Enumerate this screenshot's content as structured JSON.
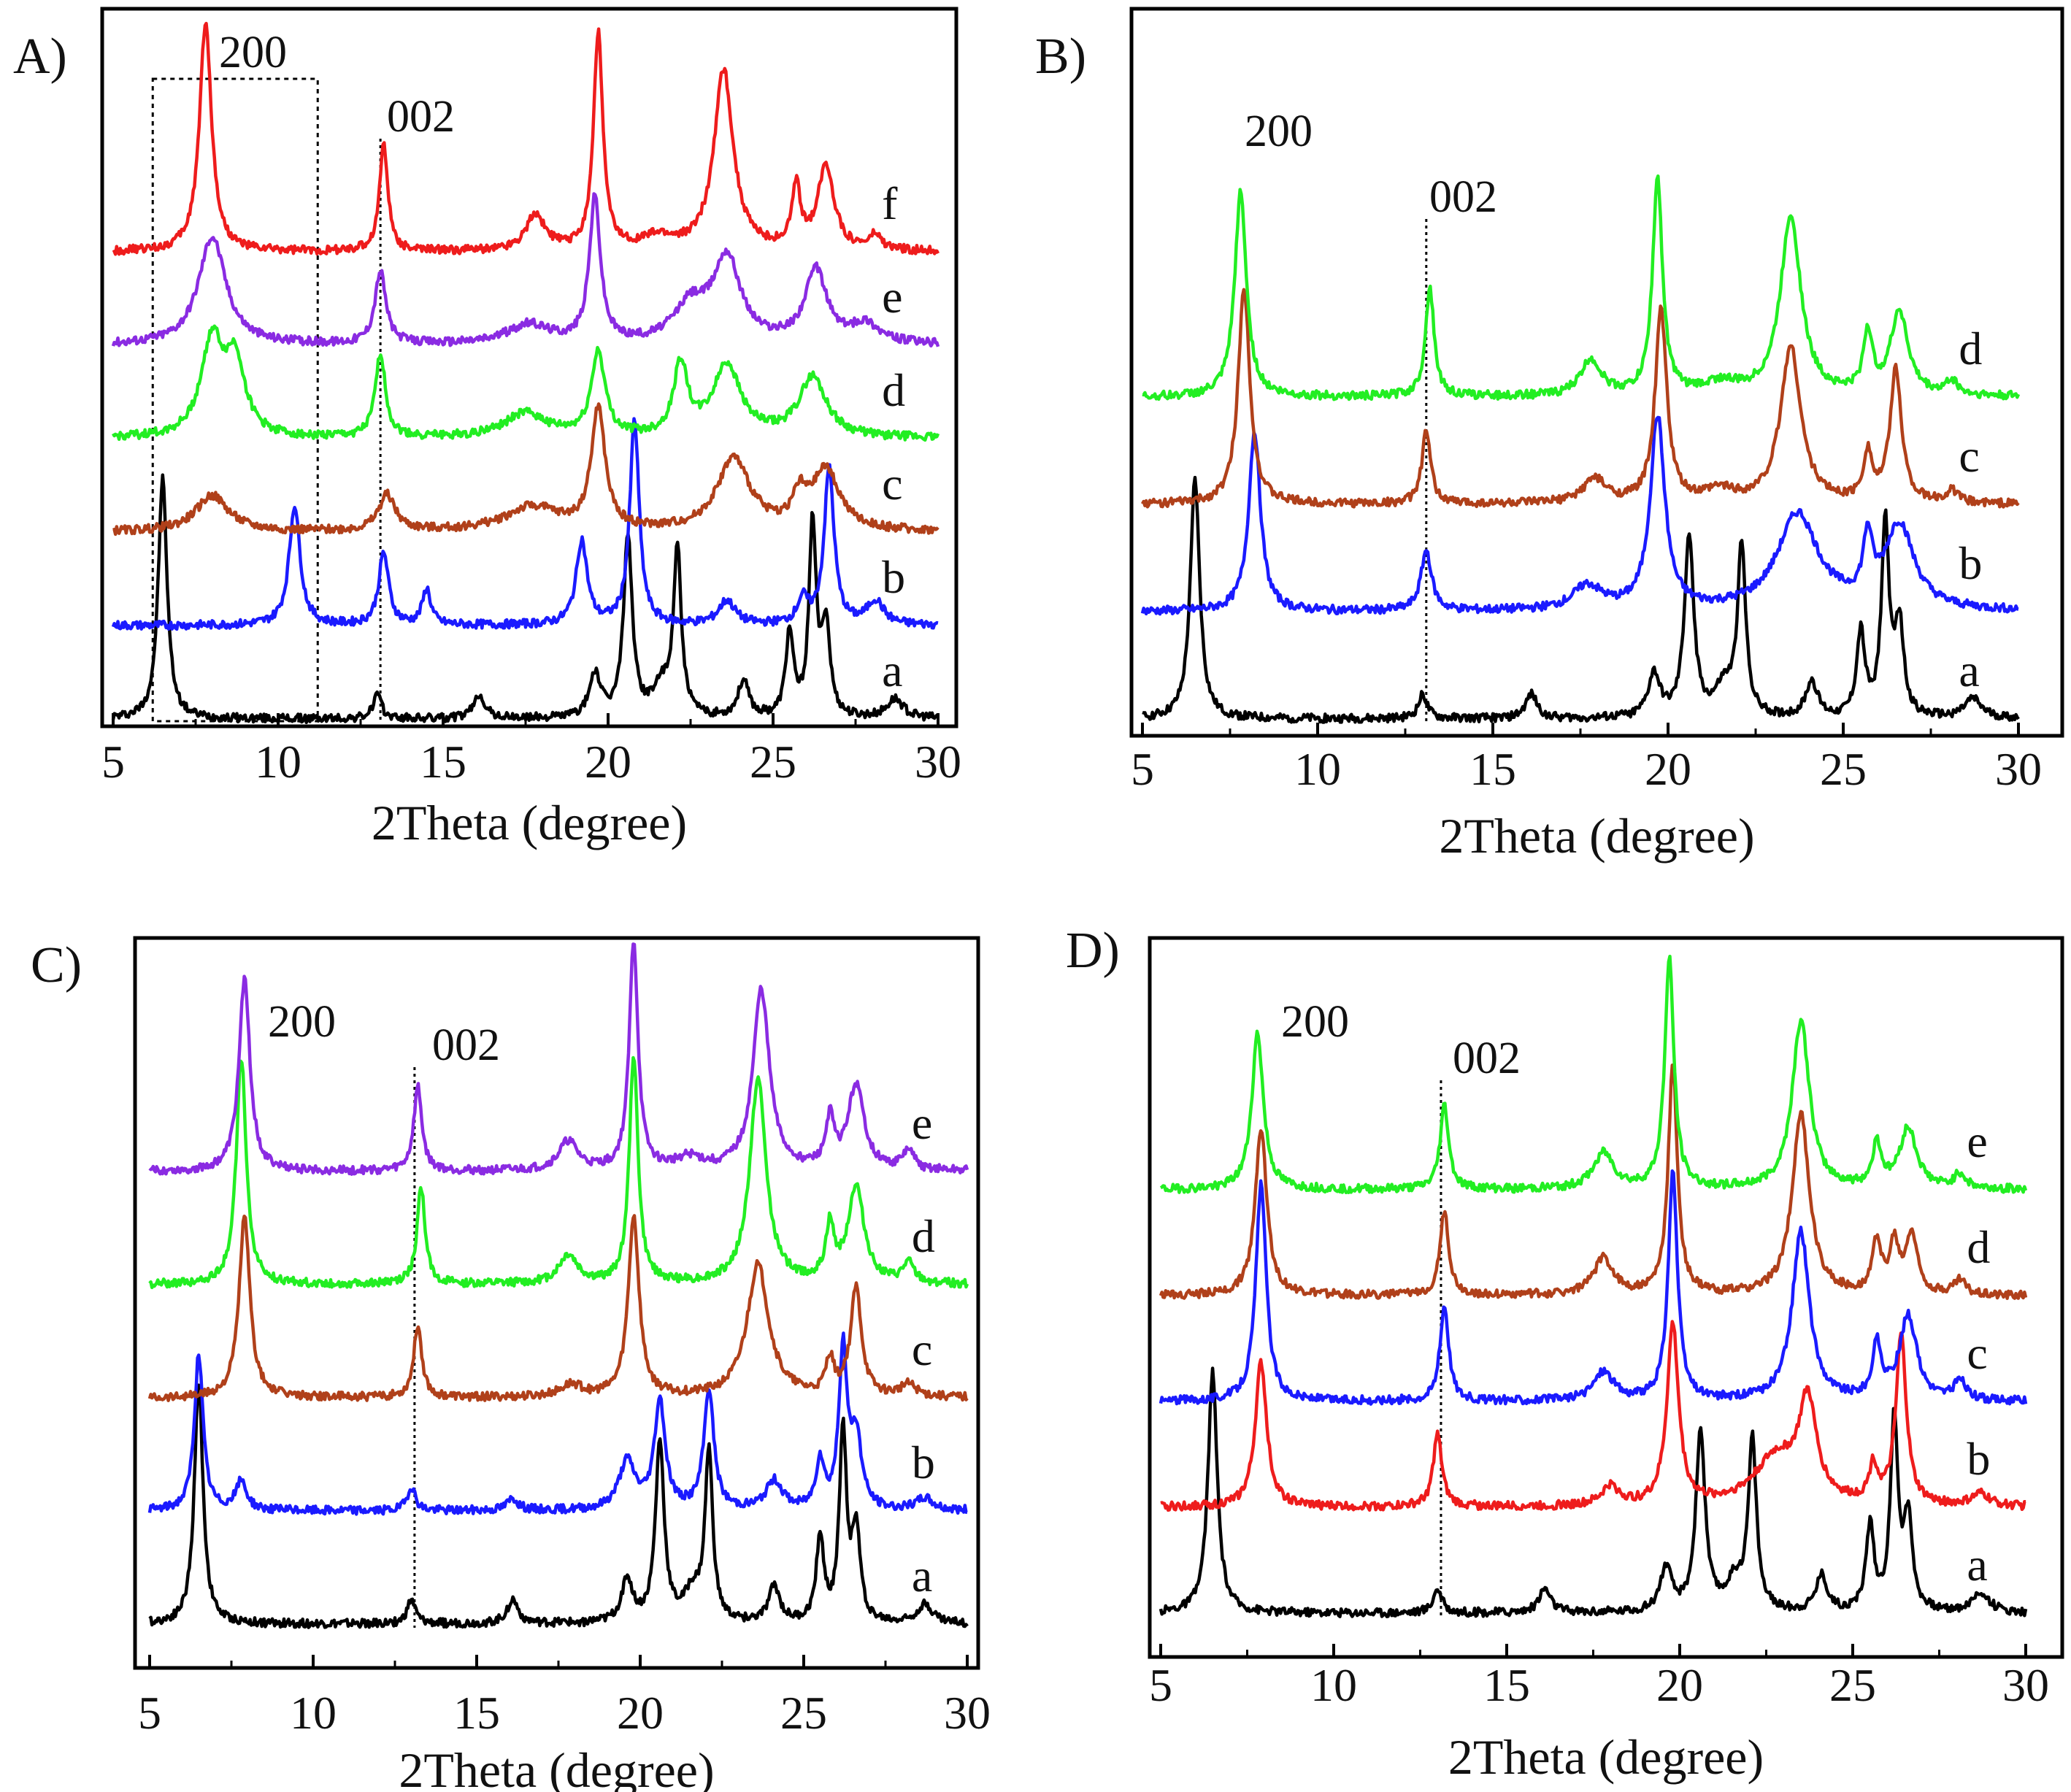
{
  "figure": {
    "x_axis_label": "2Theta (degree)",
    "x_ticks": [
      5,
      10,
      15,
      20,
      25,
      30
    ],
    "x_range": [
      5,
      30
    ]
  },
  "colors": {
    "black": "#000000",
    "blue": "#1a1aff",
    "brown": "#b0401a",
    "green": "#22ee22",
    "purple": "#8a2be2",
    "red": "#ee1c1c",
    "dotted": "#000000"
  },
  "chart_data": [
    {
      "id": "A",
      "panel_label": "A)",
      "type": "line",
      "xlabel": "2Theta (degree)",
      "xlim": [
        5,
        30
      ],
      "annotations": {
        "peak_200": "200",
        "peak_002": "002"
      },
      "has_dashed_box": true,
      "series": [
        {
          "name": "a",
          "color": "black",
          "peaks": [
            [
              6.5,
              1.0,
              0.16
            ],
            [
              13.0,
              0.1,
              0.15
            ],
            [
              16.1,
              0.1,
              0.2
            ],
            [
              19.6,
              0.18,
              0.2
            ],
            [
              20.6,
              0.75,
              0.16
            ],
            [
              22.1,
              0.7,
              0.14
            ],
            [
              21.6,
              0.12,
              0.3
            ],
            [
              24.1,
              0.15,
              0.2
            ],
            [
              25.5,
              0.35,
              0.14
            ],
            [
              26.2,
              0.8,
              0.13
            ],
            [
              26.6,
              0.38,
              0.15
            ],
            [
              28.7,
              0.08,
              0.3
            ]
          ]
        },
        {
          "name": "b",
          "color": "blue",
          "peaks": [
            [
              10.5,
              0.5,
              0.2
            ],
            [
              13.2,
              0.3,
              0.18
            ],
            [
              14.5,
              0.15,
              0.15
            ],
            [
              19.2,
              0.35,
              0.2
            ],
            [
              20.8,
              0.85,
              0.17
            ],
            [
              23.6,
              0.1,
              0.3
            ],
            [
              25.9,
              0.1,
              0.2
            ],
            [
              26.7,
              0.65,
              0.18
            ],
            [
              28.1,
              0.1,
              0.3
            ]
          ]
        },
        {
          "name": "c",
          "color": "brown",
          "peaks": [
            [
              8.0,
              0.15,
              0.6
            ],
            [
              13.3,
              0.15,
              0.3
            ],
            [
              17.7,
              0.1,
              1.0
            ],
            [
              19.7,
              0.5,
              0.25
            ],
            [
              23.8,
              0.3,
              0.6
            ],
            [
              25.8,
              0.12,
              0.25
            ],
            [
              26.6,
              0.25,
              0.5
            ]
          ]
        },
        {
          "name": "d",
          "color": "green",
          "peaks": [
            [
              8.0,
              0.4,
              0.4
            ],
            [
              8.7,
              0.3,
              0.35
            ],
            [
              13.1,
              0.35,
              0.18
            ],
            [
              17.5,
              0.1,
              0.8
            ],
            [
              19.7,
              0.35,
              0.25
            ],
            [
              22.2,
              0.3,
              0.25
            ],
            [
              23.6,
              0.3,
              0.5
            ],
            [
              26.2,
              0.25,
              0.5
            ]
          ]
        },
        {
          "name": "e",
          "color": "purple",
          "peaks": [
            [
              8.0,
              0.45,
              0.5
            ],
            [
              13.1,
              0.3,
              0.2
            ],
            [
              17.6,
              0.08,
              0.8
            ],
            [
              19.6,
              0.6,
              0.2
            ],
            [
              22.5,
              0.15,
              0.6
            ],
            [
              23.6,
              0.35,
              0.5
            ],
            [
              26.3,
              0.3,
              0.4
            ],
            [
              27.8,
              0.08,
              0.5
            ]
          ]
        },
        {
          "name": "f",
          "color": "red",
          "peaks": [
            [
              7.8,
              0.95,
              0.22
            ],
            [
              13.2,
              0.45,
              0.15
            ],
            [
              17.8,
              0.15,
              0.35
            ],
            [
              19.7,
              0.9,
              0.17
            ],
            [
              21.5,
              0.05,
              0.6
            ],
            [
              23.5,
              0.75,
              0.35
            ],
            [
              25.7,
              0.25,
              0.15
            ],
            [
              26.6,
              0.35,
              0.3
            ],
            [
              28.1,
              0.06,
              0.2
            ]
          ]
        }
      ]
    },
    {
      "id": "B",
      "panel_label": "B)",
      "type": "line",
      "xlabel": "2Theta (degree)",
      "xlim": [
        5,
        30
      ],
      "annotations": {
        "peak_200": "200",
        "peak_002": "002"
      },
      "series": [
        {
          "name": "a",
          "color": "black",
          "peaks": [
            [
              6.5,
              1.0,
              0.16
            ],
            [
              13.0,
              0.1,
              0.15
            ],
            [
              16.1,
              0.1,
              0.2
            ],
            [
              19.6,
              0.18,
              0.2
            ],
            [
              20.6,
              0.75,
              0.16
            ],
            [
              22.1,
              0.7,
              0.14
            ],
            [
              21.6,
              0.12,
              0.3
            ],
            [
              24.1,
              0.15,
              0.2
            ],
            [
              25.5,
              0.35,
              0.14
            ],
            [
              26.2,
              0.8,
              0.13
            ],
            [
              26.6,
              0.38,
              0.15
            ],
            [
              28.7,
              0.08,
              0.3
            ]
          ]
        },
        {
          "name": "b",
          "color": "blue",
          "peaks": [
            [
              8.2,
              0.75,
              0.2
            ],
            [
              13.1,
              0.25,
              0.18
            ],
            [
              17.7,
              0.1,
              0.5
            ],
            [
              19.7,
              0.8,
              0.25
            ],
            [
              23.7,
              0.4,
              0.7
            ],
            [
              25.7,
              0.25,
              0.15
            ],
            [
              26.6,
              0.35,
              0.5
            ]
          ]
        },
        {
          "name": "c",
          "color": "brown",
          "peaks": [
            [
              7.9,
              0.9,
              0.2
            ],
            [
              13.1,
              0.3,
              0.15
            ],
            [
              17.9,
              0.1,
              0.4
            ],
            [
              19.8,
              0.8,
              0.2
            ],
            [
              21.5,
              0.05,
              0.5
            ],
            [
              23.5,
              0.65,
              0.35
            ],
            [
              25.7,
              0.2,
              0.15
            ],
            [
              26.5,
              0.55,
              0.2
            ],
            [
              28.1,
              0.05,
              0.2
            ]
          ]
        },
        {
          "name": "d",
          "color": "green",
          "peaks": [
            [
              7.8,
              0.85,
              0.2
            ],
            [
              13.2,
              0.45,
              0.15
            ],
            [
              17.8,
              0.15,
              0.35
            ],
            [
              19.7,
              0.9,
              0.17
            ],
            [
              21.5,
              0.05,
              0.6
            ],
            [
              23.5,
              0.75,
              0.35
            ],
            [
              25.7,
              0.25,
              0.15
            ],
            [
              26.6,
              0.35,
              0.3
            ],
            [
              28.1,
              0.06,
              0.2
            ]
          ]
        }
      ]
    },
    {
      "id": "C",
      "panel_label": "C)",
      "type": "line",
      "xlabel": "2Theta (degree)",
      "xlim": [
        5,
        30
      ],
      "annotations": {
        "peak_200": "200",
        "peak_002": "002"
      },
      "series": [
        {
          "name": "a",
          "color": "black",
          "peaks": [
            [
              6.5,
              1.0,
              0.16
            ],
            [
              13.0,
              0.1,
              0.15
            ],
            [
              16.1,
              0.1,
              0.2
            ],
            [
              19.6,
              0.18,
              0.2
            ],
            [
              20.6,
              0.75,
              0.16
            ],
            [
              22.1,
              0.7,
              0.14
            ],
            [
              21.6,
              0.12,
              0.3
            ],
            [
              24.1,
              0.15,
              0.2
            ],
            [
              25.5,
              0.35,
              0.14
            ],
            [
              26.2,
              0.8,
              0.13
            ],
            [
              26.6,
              0.38,
              0.15
            ],
            [
              28.7,
              0.08,
              0.3
            ]
          ]
        },
        {
          "name": "b",
          "color": "blue",
          "peaks": [
            [
              6.5,
              0.65,
              0.16
            ],
            [
              7.8,
              0.12,
              0.2
            ],
            [
              13.0,
              0.1,
              0.15
            ],
            [
              16.1,
              0.05,
              0.2
            ],
            [
              19.6,
              0.2,
              0.3
            ],
            [
              20.6,
              0.45,
              0.2
            ],
            [
              22.1,
              0.5,
              0.18
            ],
            [
              24.1,
              0.12,
              0.3
            ],
            [
              25.5,
              0.2,
              0.15
            ],
            [
              26.2,
              0.65,
              0.15
            ],
            [
              26.6,
              0.3,
              0.2
            ],
            [
              28.7,
              0.05,
              0.3
            ]
          ]
        },
        {
          "name": "c",
          "color": "brown",
          "peaks": [
            [
              7.9,
              0.75,
              0.2
            ],
            [
              13.2,
              0.3,
              0.15
            ],
            [
              17.9,
              0.05,
              0.4
            ],
            [
              19.8,
              0.75,
              0.2
            ],
            [
              23.6,
              0.55,
              0.4
            ],
            [
              25.8,
              0.15,
              0.15
            ],
            [
              26.6,
              0.45,
              0.2
            ],
            [
              28.2,
              0.05,
              0.3
            ]
          ]
        },
        {
          "name": "d",
          "color": "green",
          "peaks": [
            [
              7.8,
              0.95,
              0.18
            ],
            [
              13.3,
              0.4,
              0.15
            ],
            [
              17.8,
              0.12,
              0.35
            ],
            [
              19.8,
              0.95,
              0.16
            ],
            [
              23.6,
              0.85,
              0.3
            ],
            [
              25.8,
              0.22,
              0.15
            ],
            [
              26.6,
              0.4,
              0.3
            ],
            [
              28.2,
              0.08,
              0.2
            ]
          ]
        },
        {
          "name": "e",
          "color": "purple",
          "peaks": [
            [
              7.9,
              0.8,
              0.2
            ],
            [
              13.2,
              0.35,
              0.15
            ],
            [
              17.8,
              0.12,
              0.35
            ],
            [
              19.8,
              0.95,
              0.16
            ],
            [
              21.5,
              0.05,
              0.5
            ],
            [
              23.7,
              0.75,
              0.3
            ],
            [
              25.8,
              0.2,
              0.15
            ],
            [
              26.6,
              0.35,
              0.3
            ],
            [
              28.2,
              0.08,
              0.2
            ]
          ]
        }
      ]
    },
    {
      "id": "D",
      "panel_label": "D)",
      "type": "line",
      "xlabel": "2Theta (degree)",
      "xlim": [
        5,
        30
      ],
      "annotations": {
        "peak_200": "200",
        "peak_002": "002"
      },
      "series": [
        {
          "name": "a",
          "color": "black",
          "peaks": [
            [
              6.5,
              1.0,
              0.16
            ],
            [
              13.0,
              0.1,
              0.15
            ],
            [
              16.1,
              0.1,
              0.2
            ],
            [
              19.6,
              0.18,
              0.2
            ],
            [
              20.6,
              0.75,
              0.16
            ],
            [
              22.1,
              0.7,
              0.14
            ],
            [
              21.6,
              0.12,
              0.3
            ],
            [
              24.1,
              0.15,
              0.2
            ],
            [
              25.5,
              0.35,
              0.14
            ],
            [
              26.2,
              0.8,
              0.13
            ],
            [
              26.6,
              0.38,
              0.15
            ],
            [
              28.7,
              0.08,
              0.3
            ]
          ]
        },
        {
          "name": "b",
          "color": "red",
          "peaks": [
            [
              7.9,
              0.6,
              0.2
            ],
            [
              13.0,
              0.3,
              0.15
            ],
            [
              18.0,
              0.08,
              0.3
            ],
            [
              19.8,
              0.75,
              0.2
            ],
            [
              22.8,
              0.2,
              0.8
            ],
            [
              23.7,
              0.4,
              0.3
            ],
            [
              25.6,
              0.15,
              0.15
            ],
            [
              26.4,
              0.7,
              0.18
            ],
            [
              28.7,
              0.05,
              0.3
            ]
          ]
        },
        {
          "name": "c",
          "color": "blue",
          "peaks": [
            [
              7.9,
              0.9,
              0.18
            ],
            [
              13.2,
              0.4,
              0.15
            ],
            [
              17.8,
              0.12,
              0.35
            ],
            [
              19.8,
              0.95,
              0.16
            ],
            [
              23.5,
              0.7,
              0.3
            ],
            [
              25.7,
              0.22,
              0.15
            ],
            [
              26.6,
              0.35,
              0.3
            ],
            [
              28.1,
              0.08,
              0.2
            ]
          ]
        },
        {
          "name": "d",
          "color": "brown",
          "peaks": [
            [
              7.9,
              0.7,
              0.2
            ],
            [
              13.2,
              0.35,
              0.15
            ],
            [
              17.8,
              0.15,
              0.35
            ],
            [
              19.8,
              0.95,
              0.16
            ],
            [
              23.5,
              0.75,
              0.3
            ],
            [
              25.7,
              0.22,
              0.15
            ],
            [
              26.2,
              0.2,
              0.15
            ],
            [
              26.7,
              0.25,
              0.2
            ],
            [
              28.1,
              0.06,
              0.2
            ]
          ]
        },
        {
          "name": "e",
          "color": "green",
          "peaks": [
            [
              7.8,
              0.65,
              0.2
            ],
            [
              13.2,
              0.35,
              0.15
            ],
            [
              17.8,
              0.15,
              0.35
            ],
            [
              19.7,
              0.95,
              0.16
            ],
            [
              23.5,
              0.7,
              0.3
            ],
            [
              25.7,
              0.18,
              0.15
            ],
            [
              26.6,
              0.25,
              0.3
            ],
            [
              28.1,
              0.06,
              0.2
            ]
          ]
        }
      ]
    }
  ]
}
